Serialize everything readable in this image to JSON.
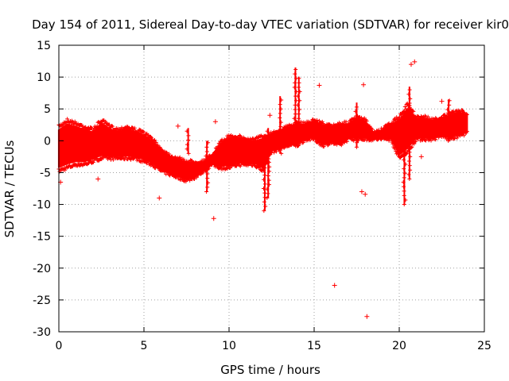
{
  "chart_data": {
    "type": "scatter",
    "title": "Day 154 of 2011, Sidereal Day-to-day VTEC variation (SDTVAR) for receiver kir0",
    "xlabel": "GPS time / hours",
    "ylabel": "SDTVAR / TECUs",
    "xlim": [
      0,
      25
    ],
    "ylim": [
      -30,
      15
    ],
    "xticks": [
      0,
      5,
      10,
      15,
      20,
      25
    ],
    "yticks": [
      -30,
      -25,
      -20,
      -15,
      -10,
      -5,
      0,
      5,
      10,
      15
    ],
    "grid": true,
    "marker": "+",
    "color": "#ff0000",
    "band": {
      "x": [
        0.0,
        0.5,
        1.0,
        1.5,
        2.0,
        2.5,
        3.0,
        3.5,
        4.0,
        4.5,
        5.0,
        5.5,
        6.0,
        6.5,
        7.0,
        7.5,
        8.0,
        8.5,
        9.0,
        9.5,
        10.0,
        10.5,
        11.0,
        11.5,
        12.0,
        12.5,
        13.0,
        13.5,
        14.0,
        14.5,
        15.0,
        15.5,
        16.0,
        16.5,
        17.0,
        17.5,
        18.0,
        18.5,
        19.0,
        19.5,
        20.0,
        20.5,
        21.0,
        21.5,
        22.0,
        22.5,
        23.0,
        23.5,
        24.0
      ],
      "high": [
        2.5,
        3.5,
        3.0,
        2.5,
        2.0,
        3.5,
        2.5,
        2.0,
        2.5,
        2.0,
        1.5,
        0.5,
        -1.0,
        -2.0,
        -2.5,
        -3.0,
        -3.0,
        -3.0,
        -2.0,
        0.0,
        1.0,
        1.0,
        0.5,
        0.5,
        1.0,
        1.5,
        2.0,
        2.5,
        3.0,
        3.0,
        3.5,
        3.0,
        2.5,
        3.0,
        3.0,
        4.0,
        3.5,
        1.5,
        2.0,
        3.0,
        4.0,
        6.0,
        4.0,
        4.0,
        3.5,
        4.0,
        4.5,
        5.0,
        4.5
      ],
      "low": [
        -5.0,
        -4.5,
        -4.0,
        -4.0,
        -3.5,
        -3.0,
        -3.0,
        -3.0,
        -3.0,
        -3.0,
        -3.5,
        -4.0,
        -5.0,
        -5.5,
        -6.0,
        -6.5,
        -6.0,
        -5.0,
        -4.0,
        -4.5,
        -4.5,
        -4.0,
        -4.0,
        -4.0,
        -5.0,
        -2.0,
        -1.5,
        -1.0,
        -1.0,
        0.0,
        0.0,
        -1.0,
        -0.5,
        -1.0,
        0.0,
        0.0,
        0.0,
        0.0,
        0.0,
        0.0,
        -3.0,
        -2.0,
        0.0,
        0.0,
        0.0,
        0.5,
        0.0,
        0.5,
        1.0
      ]
    },
    "spikes": [
      {
        "x": 8.7,
        "ymin": -8.0,
        "ymax": 0.0
      },
      {
        "x": 12.1,
        "ymin": -11.0,
        "ymax": 0.0
      },
      {
        "x": 12.3,
        "ymin": -9.0,
        "ymax": 2.0
      },
      {
        "x": 13.0,
        "ymin": -2.0,
        "ymax": 7.0
      },
      {
        "x": 13.9,
        "ymin": 0.0,
        "ymax": 11.5
      },
      {
        "x": 14.1,
        "ymin": 0.0,
        "ymax": 10.0
      },
      {
        "x": 17.5,
        "ymin": -1.0,
        "ymax": 6.0
      },
      {
        "x": 20.3,
        "ymin": -10.0,
        "ymax": 3.0
      },
      {
        "x": 20.6,
        "ymin": -6.0,
        "ymax": 8.5
      },
      {
        "x": 22.9,
        "ymin": 0.0,
        "ymax": 6.5
      },
      {
        "x": 7.6,
        "ymin": -2.0,
        "ymax": 2.0
      }
    ],
    "outliers": [
      {
        "x": 0.1,
        "y": -6.5
      },
      {
        "x": 2.3,
        "y": -6.0
      },
      {
        "x": 5.9,
        "y": -9.0
      },
      {
        "x": 7.0,
        "y": 2.3
      },
      {
        "x": 9.1,
        "y": -12.2
      },
      {
        "x": 9.2,
        "y": 3.0
      },
      {
        "x": 12.4,
        "y": 4.0
      },
      {
        "x": 15.3,
        "y": 8.7
      },
      {
        "x": 16.2,
        "y": -22.7
      },
      {
        "x": 17.8,
        "y": -8.0
      },
      {
        "x": 17.9,
        "y": 8.8
      },
      {
        "x": 18.0,
        "y": -8.4
      },
      {
        "x": 18.1,
        "y": -27.6
      },
      {
        "x": 20.7,
        "y": 12.0
      },
      {
        "x": 20.9,
        "y": 12.4
      },
      {
        "x": 21.3,
        "y": -2.5
      },
      {
        "x": 22.5,
        "y": 6.2
      }
    ]
  }
}
